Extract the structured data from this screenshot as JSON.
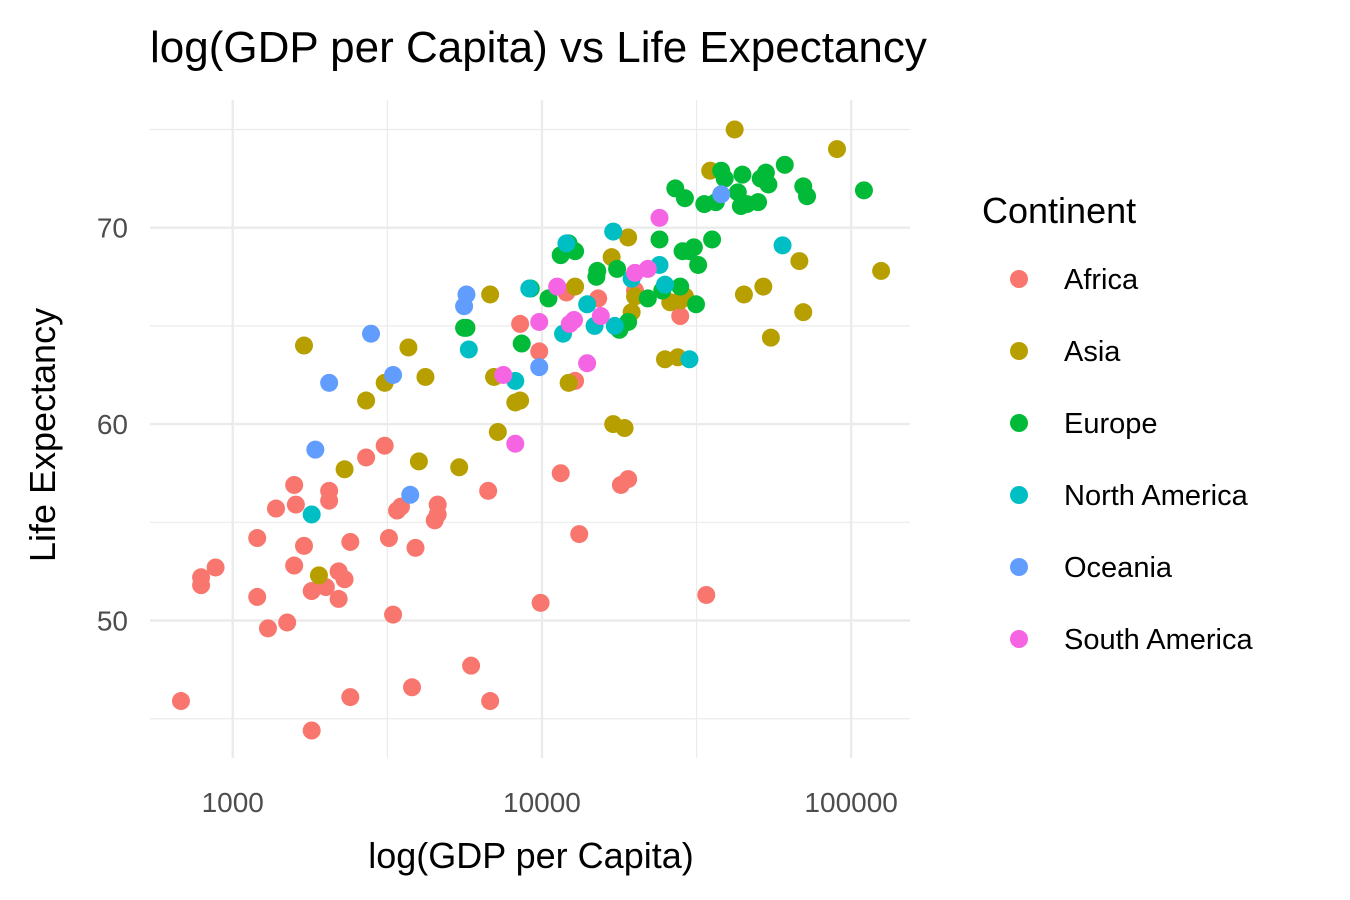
{
  "chart_data": {
    "type": "scatter",
    "title": "log(GDP per Capita) vs Life Expectancy",
    "xlabel": "log(GDP per Capita)",
    "ylabel": "Life Expectancy",
    "x_scale": "log10",
    "xlim": [
      540,
      155000
    ],
    "ylim": [
      43,
      76.5
    ],
    "x_ticks": [
      {
        "value": 1000,
        "label": "1000"
      },
      {
        "value": 10000,
        "label": "10000"
      },
      {
        "value": 100000,
        "label": "100000"
      }
    ],
    "y_ticks": [
      {
        "value": 50,
        "label": "50"
      },
      {
        "value": 60,
        "label": "60"
      },
      {
        "value": 70,
        "label": "70"
      }
    ],
    "grid": true,
    "legend": {
      "title": "Continent",
      "position": "right"
    },
    "series": [
      {
        "name": "Africa",
        "color": "#F8766D",
        "points": [
          [
            680,
            45.9
          ],
          [
            790,
            51.8
          ],
          [
            790,
            52.2
          ],
          [
            880,
            52.7
          ],
          [
            1200,
            51.2
          ],
          [
            1200,
            54.2
          ],
          [
            1300,
            49.6
          ],
          [
            1380,
            55.7
          ],
          [
            1500,
            49.9
          ],
          [
            1580,
            56.9
          ],
          [
            1580,
            52.8
          ],
          [
            1600,
            55.9
          ],
          [
            1700,
            53.8
          ],
          [
            1800,
            44.4
          ],
          [
            1800,
            51.5
          ],
          [
            2000,
            51.7
          ],
          [
            2050,
            56.6
          ],
          [
            2050,
            56.1
          ],
          [
            2200,
            52.5
          ],
          [
            2200,
            51.1
          ],
          [
            2300,
            52.1
          ],
          [
            2400,
            54.0
          ],
          [
            2400,
            46.1
          ],
          [
            2700,
            58.3
          ],
          [
            3100,
            58.9
          ],
          [
            3200,
            54.2
          ],
          [
            3300,
            50.3
          ],
          [
            3400,
            55.6
          ],
          [
            3500,
            55.8
          ],
          [
            3800,
            46.6
          ],
          [
            3900,
            53.7
          ],
          [
            4500,
            55.1
          ],
          [
            4600,
            55.4
          ],
          [
            4600,
            55.9
          ],
          [
            5900,
            47.7
          ],
          [
            6700,
            56.6
          ],
          [
            6800,
            45.9
          ],
          [
            8500,
            65.1
          ],
          [
            9800,
            63.7
          ],
          [
            9900,
            50.9
          ],
          [
            11500,
            57.5
          ],
          [
            12000,
            66.7
          ],
          [
            12800,
            62.2
          ],
          [
            13200,
            54.4
          ],
          [
            15200,
            66.4
          ],
          [
            18000,
            56.9
          ],
          [
            19000,
            57.2
          ],
          [
            20000,
            66.8
          ],
          [
            28000,
            65.5
          ],
          [
            34000,
            51.3
          ]
        ]
      },
      {
        "name": "Asia",
        "color": "#B79F00",
        "points": [
          [
            1700,
            64.0
          ],
          [
            1900,
            52.3
          ],
          [
            2300,
            57.7
          ],
          [
            2700,
            61.2
          ],
          [
            3100,
            62.1
          ],
          [
            3700,
            63.9
          ],
          [
            4000,
            58.1
          ],
          [
            4200,
            62.4
          ],
          [
            5400,
            57.8
          ],
          [
            6800,
            66.6
          ],
          [
            7000,
            62.4
          ],
          [
            7200,
            59.6
          ],
          [
            8200,
            61.1
          ],
          [
            8500,
            61.2
          ],
          [
            12200,
            62.1
          ],
          [
            12800,
            67.0
          ],
          [
            16800,
            68.5
          ],
          [
            17000,
            60.0
          ],
          [
            18500,
            59.8
          ],
          [
            19000,
            69.5
          ],
          [
            19500,
            65.7
          ],
          [
            20000,
            66.5
          ],
          [
            25000,
            63.3
          ],
          [
            26000,
            66.2
          ],
          [
            27500,
            63.4
          ],
          [
            28000,
            66.3
          ],
          [
            29000,
            66.5
          ],
          [
            35000,
            72.9
          ],
          [
            42000,
            75.0
          ],
          [
            45000,
            66.6
          ],
          [
            52000,
            67.0
          ],
          [
            55000,
            64.4
          ],
          [
            68000,
            68.3
          ],
          [
            70000,
            65.7
          ],
          [
            90000,
            74.0
          ],
          [
            125000,
            67.8
          ]
        ]
      },
      {
        "name": "Europe",
        "color": "#00BA38",
        "points": [
          [
            5600,
            64.9
          ],
          [
            5700,
            64.9
          ],
          [
            8600,
            64.1
          ],
          [
            9200,
            66.9
          ],
          [
            10500,
            66.4
          ],
          [
            11500,
            68.6
          ],
          [
            12200,
            69.2
          ],
          [
            12800,
            68.8
          ],
          [
            15000,
            67.5
          ],
          [
            15100,
            67.8
          ],
          [
            17500,
            67.9
          ],
          [
            17800,
            64.8
          ],
          [
            19000,
            65.2
          ],
          [
            22000,
            66.4
          ],
          [
            24000,
            69.4
          ],
          [
            24500,
            66.8
          ],
          [
            27000,
            72.0
          ],
          [
            28000,
            67.0
          ],
          [
            28500,
            68.8
          ],
          [
            29000,
            71.5
          ],
          [
            30000,
            68.8
          ],
          [
            31000,
            69.0
          ],
          [
            31500,
            66.1
          ],
          [
            32000,
            68.1
          ],
          [
            33500,
            71.2
          ],
          [
            35500,
            69.4
          ],
          [
            36500,
            71.3
          ],
          [
            38000,
            72.9
          ],
          [
            39000,
            72.5
          ],
          [
            43000,
            71.8
          ],
          [
            44000,
            71.1
          ],
          [
            44500,
            72.7
          ],
          [
            46000,
            71.2
          ],
          [
            50000,
            71.3
          ],
          [
            51000,
            72.5
          ],
          [
            53000,
            72.8
          ],
          [
            54000,
            72.2
          ],
          [
            61000,
            73.2
          ],
          [
            70000,
            72.1
          ],
          [
            72000,
            71.6
          ],
          [
            110000,
            71.9
          ]
        ]
      },
      {
        "name": "North America",
        "color": "#00BFC4",
        "points": [
          [
            1800,
            55.4
          ],
          [
            5800,
            63.8
          ],
          [
            8200,
            62.2
          ],
          [
            9100,
            66.9
          ],
          [
            11700,
            64.6
          ],
          [
            12000,
            69.2
          ],
          [
            14000,
            66.1
          ],
          [
            14800,
            65.0
          ],
          [
            17000,
            69.8
          ],
          [
            17200,
            65.0
          ],
          [
            19500,
            67.4
          ],
          [
            24000,
            68.1
          ],
          [
            25000,
            67.1
          ],
          [
            30000,
            63.3
          ],
          [
            60000,
            69.1
          ]
        ]
      },
      {
        "name": "Oceania",
        "color": "#619CFF",
        "points": [
          [
            1850,
            58.7
          ],
          [
            2050,
            62.1
          ],
          [
            2800,
            64.6
          ],
          [
            3300,
            62.5
          ],
          [
            3750,
            56.4
          ],
          [
            5600,
            66.0
          ],
          [
            5700,
            66.6
          ],
          [
            9800,
            62.9
          ],
          [
            38000,
            71.7
          ]
        ]
      },
      {
        "name": "South America",
        "color": "#F564E3",
        "points": [
          [
            7500,
            62.5
          ],
          [
            8200,
            59.0
          ],
          [
            9800,
            65.2
          ],
          [
            11200,
            67.0
          ],
          [
            12300,
            65.1
          ],
          [
            12700,
            65.3
          ],
          [
            14000,
            63.1
          ],
          [
            15500,
            65.5
          ],
          [
            20000,
            67.7
          ],
          [
            22000,
            67.9
          ],
          [
            24000,
            70.5
          ]
        ]
      }
    ]
  }
}
